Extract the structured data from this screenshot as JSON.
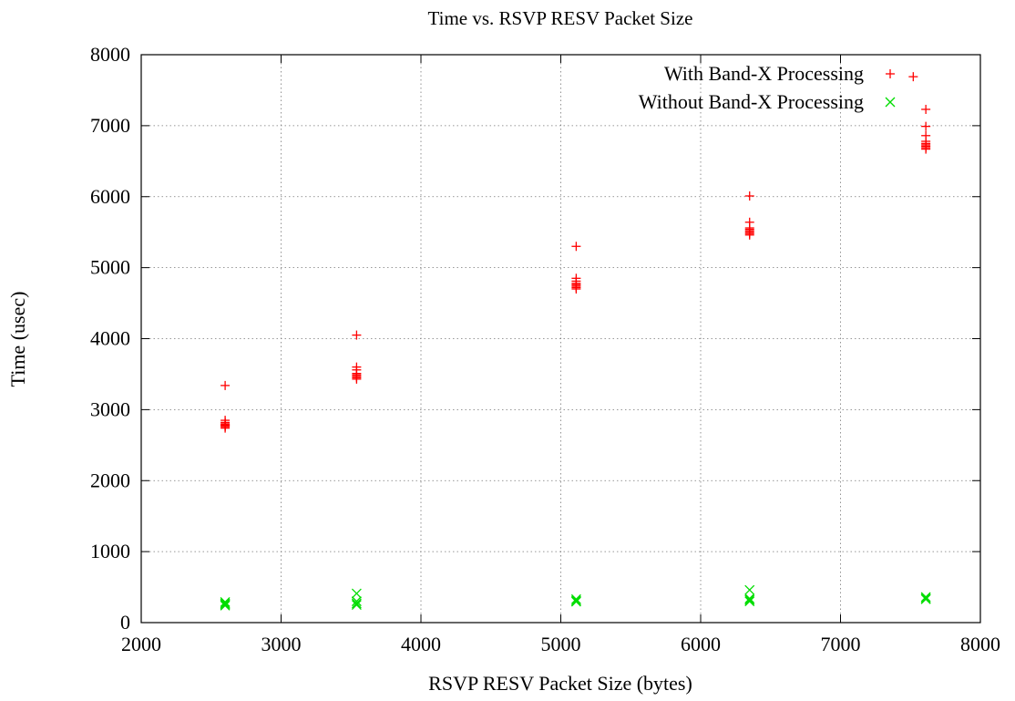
{
  "chart_data": {
    "type": "scatter",
    "title": "Time vs. RSVP RESV Packet Size",
    "xlabel": "RSVP RESV Packet Size (bytes)",
    "ylabel": "Time (usec)",
    "xlim": [
      2000,
      8000
    ],
    "ylim": [
      0,
      8000
    ],
    "xticks": [
      "2000",
      "3000",
      "4000",
      "5000",
      "6000",
      "7000",
      "8000"
    ],
    "yticks": [
      "0",
      "1000",
      "2000",
      "3000",
      "4000",
      "5000",
      "6000",
      "7000",
      "8000"
    ],
    "grid": true,
    "legend_position": "top-right",
    "series": [
      {
        "name": "With Band-X Processing",
        "marker": "plus",
        "color": "#ff0000",
        "points": [
          [
            2600,
            3340
          ],
          [
            2600,
            2850
          ],
          [
            2600,
            2820
          ],
          [
            2600,
            2800
          ],
          [
            2600,
            2790
          ],
          [
            2600,
            2780
          ],
          [
            2600,
            2770
          ],
          [
            2600,
            2760
          ],
          [
            2600,
            2740
          ],
          [
            3540,
            4050
          ],
          [
            3540,
            3600
          ],
          [
            3540,
            3560
          ],
          [
            3540,
            3510
          ],
          [
            3540,
            3490
          ],
          [
            3540,
            3470
          ],
          [
            3540,
            3450
          ],
          [
            3540,
            3430
          ],
          [
            5110,
            5300
          ],
          [
            5110,
            4850
          ],
          [
            5110,
            4810
          ],
          [
            5110,
            4780
          ],
          [
            5110,
            4760
          ],
          [
            5110,
            4740
          ],
          [
            5110,
            4720
          ],
          [
            5110,
            4700
          ],
          [
            6350,
            6010
          ],
          [
            6350,
            5640
          ],
          [
            6350,
            5560
          ],
          [
            6350,
            5540
          ],
          [
            6350,
            5520
          ],
          [
            6350,
            5500
          ],
          [
            6350,
            5480
          ],
          [
            6350,
            5460
          ],
          [
            7520,
            7690
          ],
          [
            7610,
            7230
          ],
          [
            7610,
            6990
          ],
          [
            7610,
            6860
          ],
          [
            7610,
            6780
          ],
          [
            7610,
            6750
          ],
          [
            7610,
            6730
          ],
          [
            7610,
            6710
          ],
          [
            7610,
            6690
          ],
          [
            7610,
            6670
          ]
        ]
      },
      {
        "name": "Without Band-X Processing",
        "marker": "cross",
        "color": "#00dd00",
        "points": [
          [
            2600,
            290
          ],
          [
            2600,
            270
          ],
          [
            2600,
            255
          ],
          [
            2600,
            240
          ],
          [
            3540,
            410
          ],
          [
            3540,
            300
          ],
          [
            3540,
            270
          ],
          [
            3540,
            250
          ],
          [
            5110,
            330
          ],
          [
            5110,
            310
          ],
          [
            5110,
            295
          ],
          [
            6350,
            460
          ],
          [
            6350,
            340
          ],
          [
            6350,
            320
          ],
          [
            6350,
            300
          ],
          [
            7610,
            360
          ],
          [
            7610,
            340
          ],
          [
            7610,
            330
          ]
        ]
      }
    ]
  }
}
